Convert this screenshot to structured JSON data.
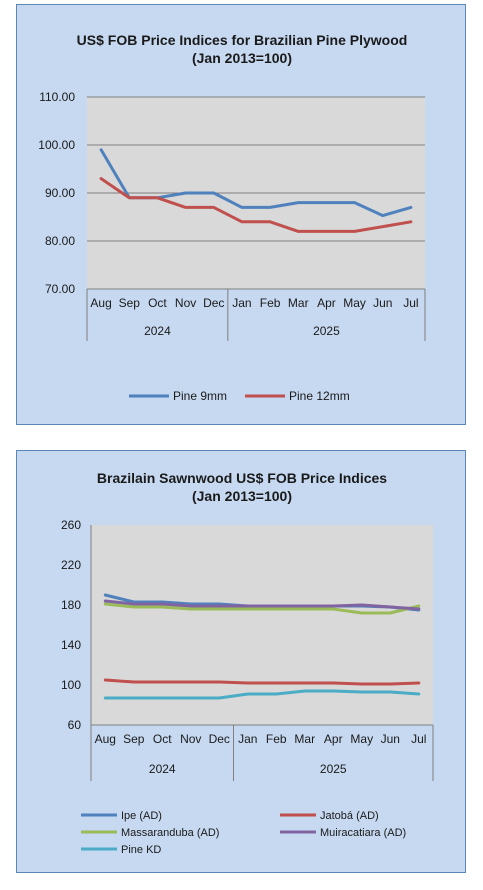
{
  "chart_data": [
    {
      "type": "line",
      "title": "US$ FOB Price Indices for Brazilian  Pine Plywood",
      "subtitle": "(Jan 2013=100)",
      "categories": [
        "Aug",
        "Sep",
        "Oct",
        "Nov",
        "Dec",
        "Jan",
        "Feb",
        "Mar",
        "Apr",
        "May",
        "Jun",
        "Jul"
      ],
      "groups": [
        {
          "label": "2024",
          "start": 0,
          "end": 4
        },
        {
          "label": "2025",
          "start": 5,
          "end": 11
        }
      ],
      "ylim": [
        70,
        110
      ],
      "yticks": [
        70,
        80,
        90,
        100,
        110
      ],
      "ytick_labels": [
        "70.00",
        "80.00",
        "90.00",
        "100.00",
        "110.00"
      ],
      "grid": true,
      "legend_position": "bottom",
      "series": [
        {
          "name": "Pine 9mm",
          "color": "#4f81bd",
          "values": [
            99,
            89,
            89,
            90,
            90,
            87,
            87,
            88,
            88,
            88,
            85.3,
            87
          ]
        },
        {
          "name": "Pine 12mm",
          "color": "#c0504d",
          "values": [
            93,
            89,
            89,
            87,
            87,
            84,
            84,
            82,
            82,
            82,
            83,
            84
          ]
        }
      ]
    },
    {
      "type": "line",
      "title": "Brazilain Sawnwood US$ FOB Price Indices",
      "subtitle": "(Jan 2013=100)",
      "categories": [
        "Aug",
        "Sep",
        "Oct",
        "Nov",
        "Dec",
        "Jan",
        "Feb",
        "Mar",
        "Apr",
        "May",
        "Jun",
        "Jul"
      ],
      "groups": [
        {
          "label": "2024",
          "start": 0,
          "end": 4
        },
        {
          "label": "2025",
          "start": 5,
          "end": 11
        }
      ],
      "ylim": [
        60,
        260
      ],
      "yticks": [
        60,
        100,
        140,
        180,
        220,
        260
      ],
      "ytick_labels": [
        "60",
        "100",
        "140",
        "180",
        "220",
        "260"
      ],
      "grid": false,
      "legend_position": "bottom",
      "series": [
        {
          "name": "Ipe (AD)",
          "color": "#4f81bd",
          "values": [
            190,
            183,
            183,
            181,
            181,
            179,
            179,
            179,
            179,
            179,
            178,
            175
          ]
        },
        {
          "name": "Jatobá (AD)",
          "color": "#c0504d",
          "values": [
            105,
            103,
            103,
            103,
            103,
            102,
            102,
            102,
            102,
            101,
            101,
            102
          ]
        },
        {
          "name": "Massaranduba (AD)",
          "color": "#9bbb59",
          "values": [
            181,
            178,
            178,
            176,
            176,
            176,
            176,
            176,
            176,
            172,
            172,
            179
          ]
        },
        {
          "name": "Muiracatiara (AD)",
          "color": "#8064a2",
          "values": [
            184,
            181,
            181,
            179,
            179,
            179,
            179,
            179,
            179,
            180,
            178,
            176
          ]
        },
        {
          "name": "Pine KD",
          "color": "#4bacc6",
          "values": [
            87,
            87,
            87,
            87,
            87,
            91,
            91,
            94,
            94,
            93,
            93,
            91
          ]
        }
      ]
    }
  ]
}
